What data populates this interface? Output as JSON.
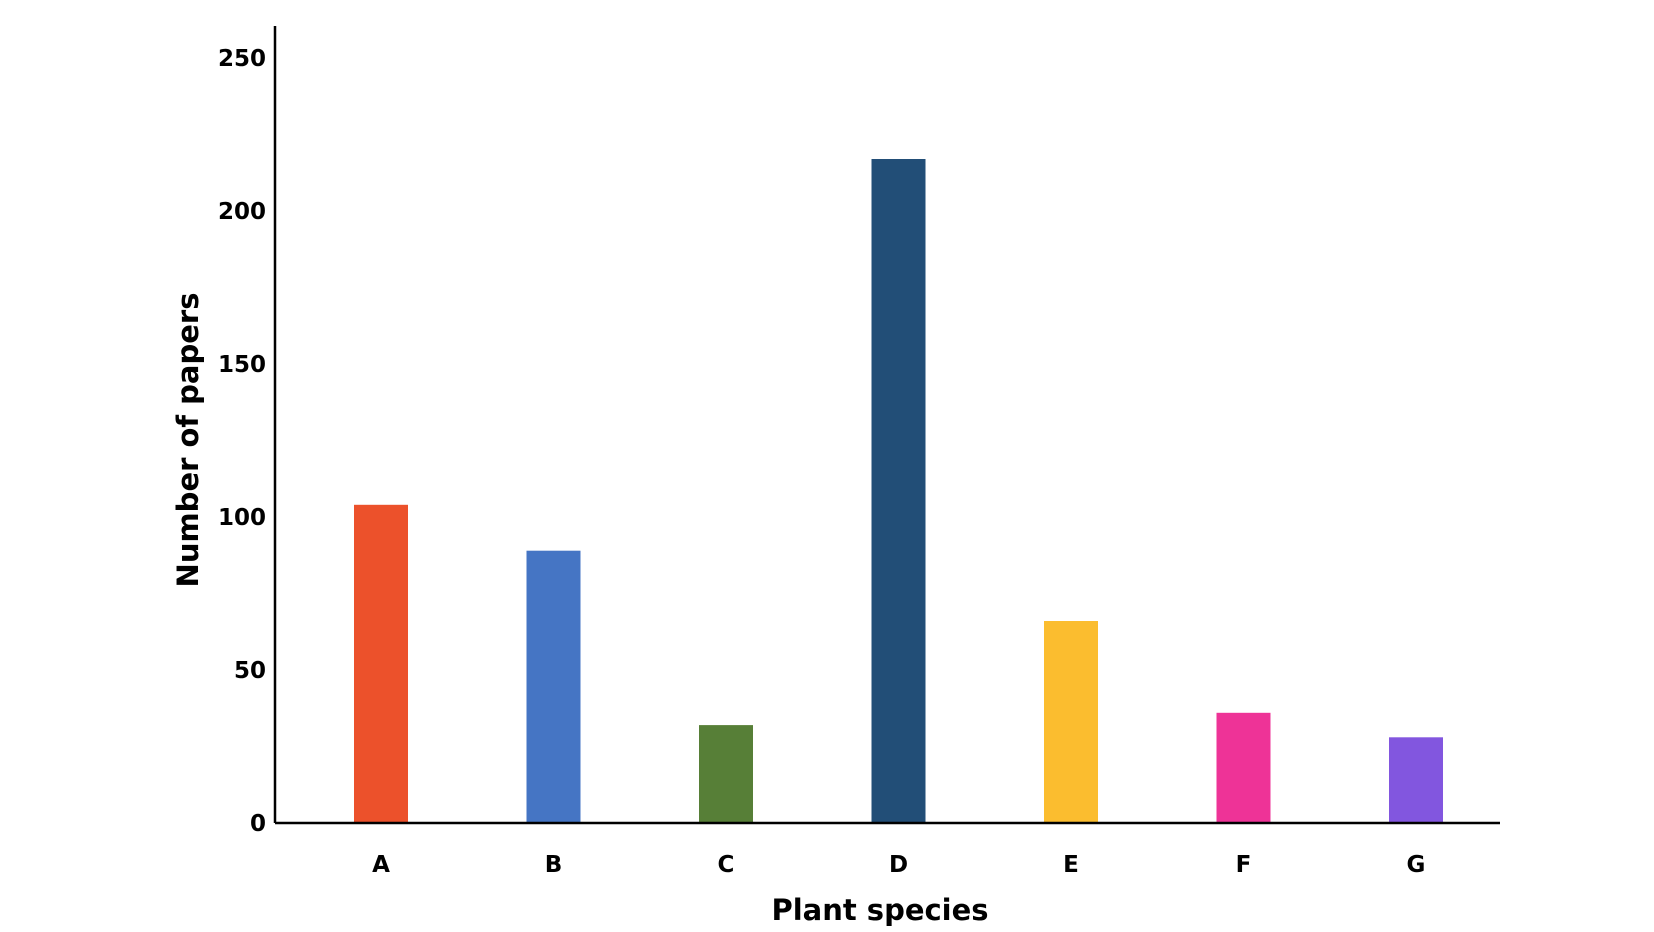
{
  "chart_data": {
    "type": "bar",
    "categories": [
      "A",
      "B",
      "C",
      "D",
      "E",
      "F",
      "G"
    ],
    "values": [
      104,
      89,
      32,
      217,
      66,
      36,
      28
    ],
    "colors": [
      "#ec512b",
      "#4575c4",
      "#577f37",
      "#224e77",
      "#fbbd2f",
      "#ee3397",
      "#8256df"
    ],
    "title": "",
    "xlabel": "Plant species",
    "ylabel": "Number of papers",
    "ylim": [
      0,
      260
    ],
    "yticks": [
      "0",
      "50",
      "100",
      "150",
      "200",
      "250"
    ],
    "grid": false,
    "legend": "none"
  }
}
